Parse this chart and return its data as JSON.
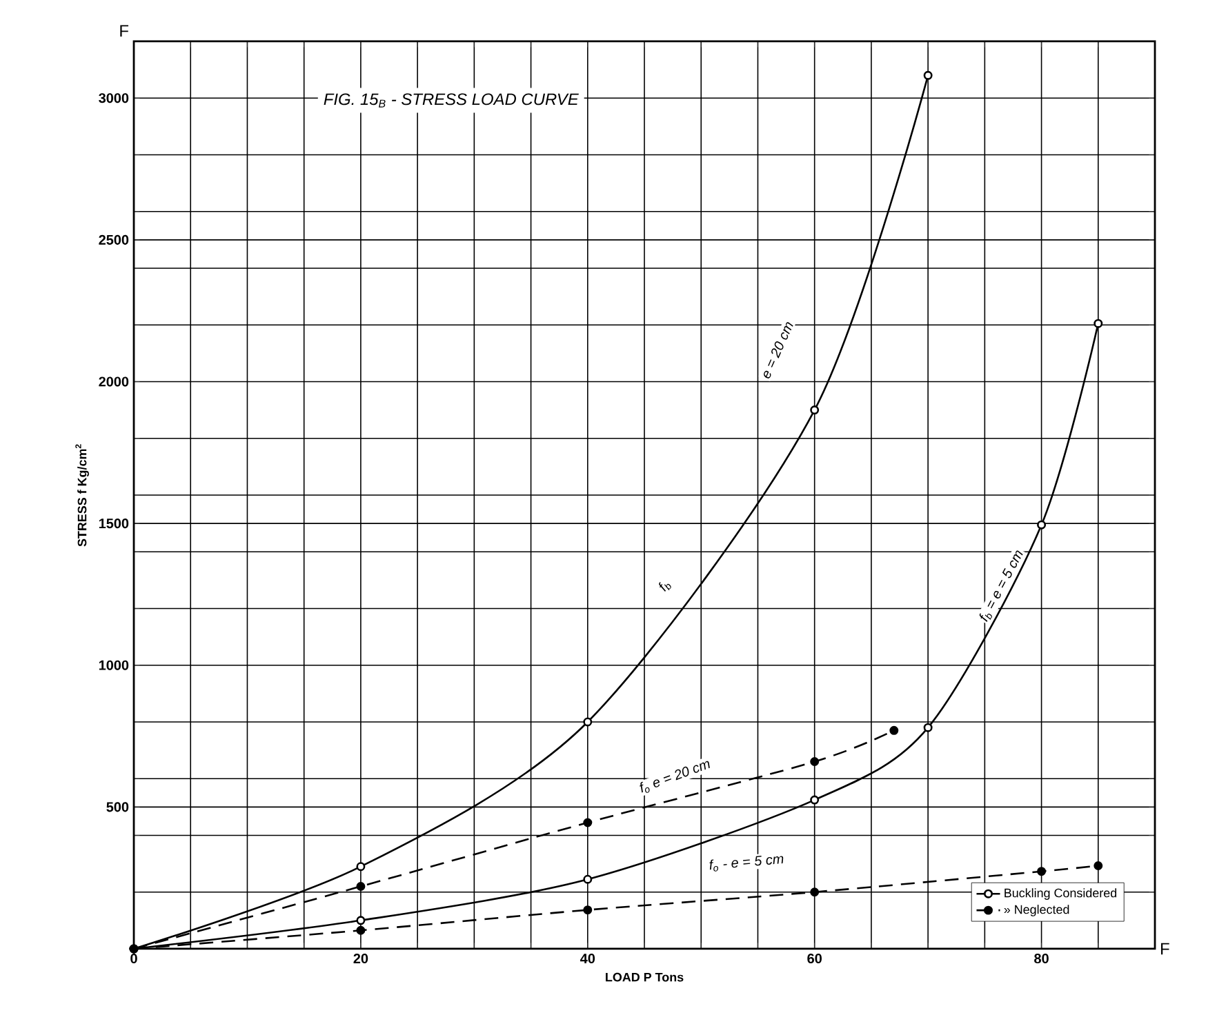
{
  "chart_data": {
    "type": "line",
    "title": "FIG. 15$_{B}$ - STRESS LOAD CURVE",
    "xlabel": "LOAD P Tons",
    "ylabel": "STRESS f Kg/cm$^{2}$",
    "xlim": [
      0,
      90
    ],
    "ylim": [
      0,
      3200
    ],
    "xticks": [
      0,
      {
        "value": 5,
        "label": null
      },
      {
        "value": 10,
        "label": null
      },
      {
        "value": 15,
        "label": null
      },
      20,
      {
        "value": 25,
        "label": null
      },
      {
        "value": 30,
        "label": null
      },
      {
        "value": 35,
        "label": null
      },
      40,
      {
        "value": 45,
        "label": null
      },
      {
        "value": 50,
        "label": null
      },
      {
        "value": 55,
        "label": null
      },
      60,
      {
        "value": 65,
        "label": null
      },
      {
        "value": 70,
        "label": null
      },
      {
        "value": 75,
        "label": null
      },
      80,
      {
        "value": 85,
        "label": null
      },
      {
        "value": 90,
        "label": null
      }
    ],
    "yticks": [
      {
        "value": 200,
        "label": null
      },
      {
        "value": 400,
        "label": null
      },
      500,
      {
        "value": 600,
        "label": null
      },
      {
        "value": 800,
        "label": null
      },
      1000,
      {
        "value": 1200,
        "label": null
      },
      {
        "value": 1400,
        "label": null
      },
      1500,
      {
        "value": 1600,
        "label": null
      },
      {
        "value": 1800,
        "label": null
      },
      2000,
      {
        "value": 2200,
        "label": null
      },
      {
        "value": 2400,
        "label": null
      },
      2500,
      {
        "value": 2600,
        "label": null
      },
      {
        "value": 2800,
        "label": null
      },
      3000
    ],
    "grid": true,
    "legend": "bottom right",
    "marker": "circle",
    "series": [
      {
        "name": "Buckling Considered",
        "color": "#000000",
        "line_style": "solid",
        "x": [
          0,
          20,
          40,
          60,
          70
        ],
        "values": [
          0,
          290,
          800,
          1900,
          3080
        ]
      },
      {
        "color": "#000000",
        "line_style": "solid",
        "x": [
          0,
          20,
          40,
          60,
          70,
          80,
          85
        ],
        "values": [
          0,
          100,
          245,
          525,
          780,
          1495,
          2205
        ]
      },
      {
        "name": "» Neglected",
        "color": "#000000",
        "line_style": "dashed",
        "x": [
          0,
          20,
          40,
          60,
          67
        ],
        "values": [
          0,
          220,
          445,
          660,
          770
        ]
      },
      {
        "color": "#000000",
        "line_style": "dashed",
        "x": [
          0,
          20,
          40,
          60,
          80,
          85
        ],
        "values": [
          0,
          65,
          137,
          200,
          273,
          293
        ]
      }
    ],
    "annotations": [
      "f$_{b}$",
      "e = 20 cm",
      "f$_{b}$ = e = 5 cm",
      "f$_{o}$ e = 20 cm",
      "f$_{o}$ - e = 5 cm",
      "F",
      "F"
    ]
  }
}
